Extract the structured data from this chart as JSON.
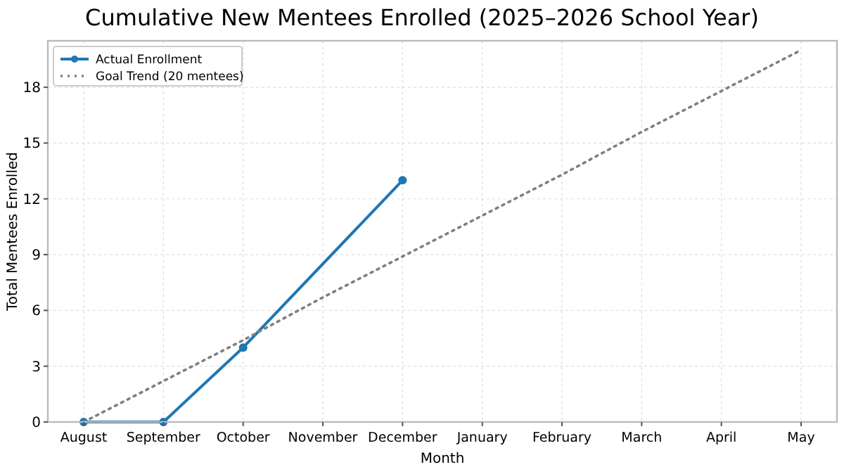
{
  "chart_data": {
    "type": "line",
    "title": "Cumulative New Mentees Enrolled (2025–2026 School Year)",
    "xlabel": "Month",
    "ylabel": "Total Mentees Enrolled",
    "categories": [
      "August",
      "September",
      "October",
      "November",
      "December",
      "January",
      "February",
      "March",
      "April",
      "May"
    ],
    "series": [
      {
        "name": "Actual Enrollment",
        "color": "#1f77b4",
        "values": [
          0,
          0,
          4,
          null,
          13,
          null,
          null,
          null,
          null,
          null
        ],
        "marker": "circle",
        "line_style": "solid"
      },
      {
        "name": "Goal Trend (20 mentees)",
        "color": "#808080",
        "values": [
          0,
          2.2,
          4.4,
          6.7,
          8.9,
          11.1,
          13.3,
          15.6,
          17.8,
          20
        ],
        "marker": "none",
        "line_style": "dotted"
      }
    ],
    "ylim": [
      0,
      20.5
    ],
    "yticks": [
      0,
      3,
      6,
      9,
      12,
      15,
      18
    ],
    "grid": true,
    "legend": "top left"
  }
}
